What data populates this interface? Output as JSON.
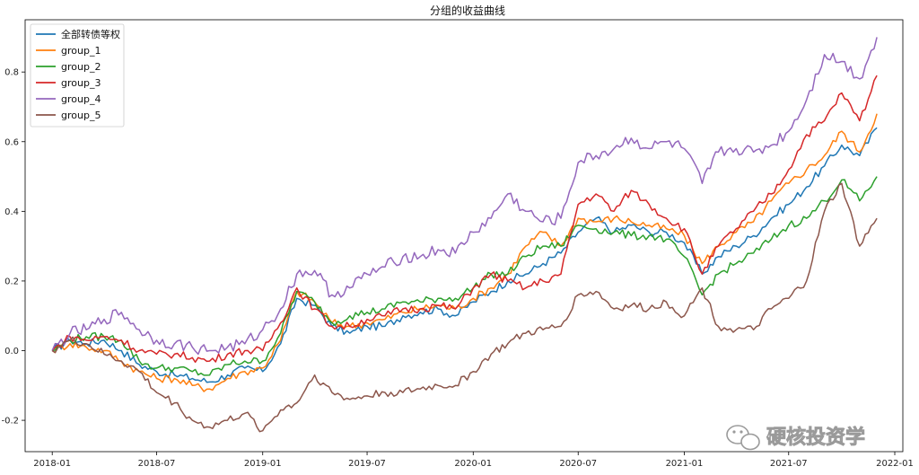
{
  "chart_data": {
    "type": "line",
    "title": "分组的收益曲线",
    "xlabel": "",
    "ylabel": "",
    "x_ticks": [
      "2018-01",
      "2018-07",
      "2019-01",
      "2019-07",
      "2020-01",
      "2020-07",
      "2021-01",
      "2021-07",
      "2022-01"
    ],
    "y_ticks": [
      "-0.2",
      "0.0",
      "0.2",
      "0.4",
      "0.6",
      "0.8"
    ],
    "ylim": [
      -0.29,
      0.95
    ],
    "xlim": [
      "2017-11-15",
      "2022-01-15"
    ],
    "grid": false,
    "legend_position": "top-left",
    "x": [
      "2018-01",
      "2018-02",
      "2018-03",
      "2018-04",
      "2018-05",
      "2018-06",
      "2018-07",
      "2018-08",
      "2018-09",
      "2018-10",
      "2018-11",
      "2018-12",
      "2019-01",
      "2019-02",
      "2019-03",
      "2019-04",
      "2019-05",
      "2019-06",
      "2019-07",
      "2019-08",
      "2019-09",
      "2019-10",
      "2019-11",
      "2019-12",
      "2020-01",
      "2020-02",
      "2020-03",
      "2020-04",
      "2020-05",
      "2020-06",
      "2020-07",
      "2020-08",
      "2020-09",
      "2020-10",
      "2020-11",
      "2020-12",
      "2021-01",
      "2021-02",
      "2021-03",
      "2021-04",
      "2021-05",
      "2021-06",
      "2021-07",
      "2021-08",
      "2021-09",
      "2021-10",
      "2021-11",
      "2021-12"
    ],
    "series": [
      {
        "name": "全部转债等权",
        "color": "#1f77b4",
        "values": [
          0.0,
          0.03,
          0.02,
          0.03,
          0.0,
          -0.04,
          -0.06,
          -0.07,
          -0.08,
          -0.09,
          -0.07,
          -0.05,
          -0.06,
          0.02,
          0.15,
          0.13,
          0.07,
          0.05,
          0.07,
          0.07,
          0.1,
          0.11,
          0.12,
          0.1,
          0.14,
          0.17,
          0.2,
          0.22,
          0.25,
          0.28,
          0.34,
          0.38,
          0.34,
          0.36,
          0.34,
          0.34,
          0.31,
          0.22,
          0.27,
          0.3,
          0.33,
          0.38,
          0.42,
          0.47,
          0.53,
          0.59,
          0.56,
          0.64
        ]
      },
      {
        "name": "group_1",
        "color": "#ff7f0e",
        "values": [
          0.0,
          0.02,
          0.01,
          0.0,
          -0.03,
          -0.06,
          -0.08,
          -0.08,
          -0.1,
          -0.11,
          -0.08,
          -0.06,
          -0.05,
          0.03,
          0.17,
          0.14,
          0.08,
          0.07,
          0.08,
          0.09,
          0.11,
          0.12,
          0.13,
          0.12,
          0.15,
          0.18,
          0.22,
          0.3,
          0.34,
          0.3,
          0.38,
          0.37,
          0.38,
          0.37,
          0.36,
          0.35,
          0.33,
          0.25,
          0.3,
          0.34,
          0.37,
          0.43,
          0.48,
          0.52,
          0.56,
          0.63,
          0.57,
          0.68
        ]
      },
      {
        "name": "group_2",
        "color": "#2ca02c",
        "values": [
          0.0,
          0.03,
          0.04,
          0.04,
          0.03,
          -0.03,
          -0.05,
          -0.05,
          -0.06,
          -0.07,
          -0.04,
          -0.03,
          -0.03,
          0.05,
          0.17,
          0.14,
          0.08,
          0.1,
          0.11,
          0.12,
          0.14,
          0.14,
          0.15,
          0.15,
          0.18,
          0.22,
          0.22,
          0.27,
          0.3,
          0.3,
          0.36,
          0.35,
          0.34,
          0.33,
          0.33,
          0.32,
          0.27,
          0.16,
          0.22,
          0.25,
          0.28,
          0.32,
          0.36,
          0.38,
          0.43,
          0.49,
          0.43,
          0.5
        ]
      },
      {
        "name": "group_3",
        "color": "#d62728",
        "values": [
          0.0,
          0.04,
          0.03,
          0.04,
          0.03,
          0.0,
          -0.01,
          -0.01,
          -0.02,
          -0.03,
          -0.01,
          0.0,
          0.0,
          0.08,
          0.18,
          0.12,
          0.07,
          0.07,
          0.09,
          0.1,
          0.12,
          0.12,
          0.13,
          0.12,
          0.18,
          0.22,
          0.2,
          0.18,
          0.2,
          0.22,
          0.42,
          0.45,
          0.4,
          0.46,
          0.42,
          0.38,
          0.35,
          0.22,
          0.3,
          0.35,
          0.4,
          0.45,
          0.52,
          0.62,
          0.66,
          0.74,
          0.66,
          0.79
        ]
      },
      {
        "name": "group_4",
        "color": "#9467bd",
        "values": [
          0.0,
          0.05,
          0.06,
          0.09,
          0.11,
          0.06,
          0.03,
          0.02,
          0.01,
          0.0,
          0.01,
          0.02,
          0.06,
          0.12,
          0.22,
          0.23,
          0.16,
          0.18,
          0.22,
          0.24,
          0.27,
          0.27,
          0.29,
          0.28,
          0.34,
          0.38,
          0.45,
          0.4,
          0.37,
          0.38,
          0.54,
          0.56,
          0.58,
          0.61,
          0.58,
          0.6,
          0.58,
          0.48,
          0.57,
          0.58,
          0.57,
          0.59,
          0.63,
          0.72,
          0.85,
          0.83,
          0.78,
          0.9
        ]
      },
      {
        "name": "group_5",
        "color": "#8c564b",
        "values": [
          0.0,
          0.03,
          0.02,
          -0.01,
          -0.03,
          -0.06,
          -0.12,
          -0.15,
          -0.2,
          -0.22,
          -0.2,
          -0.18,
          -0.23,
          -0.17,
          -0.15,
          -0.07,
          -0.12,
          -0.14,
          -0.13,
          -0.12,
          -0.12,
          -0.11,
          -0.1,
          -0.1,
          -0.06,
          -0.01,
          0.02,
          0.05,
          0.06,
          0.07,
          0.16,
          0.17,
          0.12,
          0.13,
          0.12,
          0.14,
          0.1,
          0.18,
          0.07,
          0.06,
          0.06,
          0.12,
          0.15,
          0.2,
          0.4,
          0.48,
          0.3,
          0.38
        ]
      }
    ]
  },
  "watermark": {
    "text": "硬核投资学",
    "icon": "wechat-icon"
  }
}
